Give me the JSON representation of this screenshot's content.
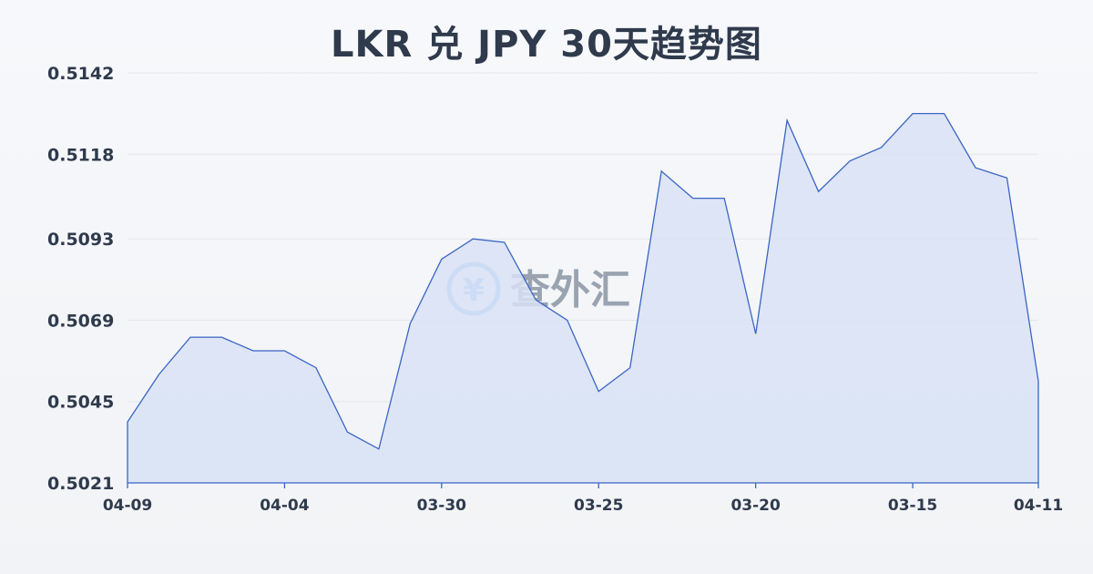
{
  "title": "LKR 兑 JPY 30天趋势图",
  "watermark": {
    "symbol": "¥",
    "text": "查外汇"
  },
  "colors": {
    "line": "#3b65c4",
    "fill": "#d8e2f6",
    "grid": "#e3e6ea",
    "text": "#2f3a4c"
  },
  "chart_data": {
    "type": "area",
    "title": "LKR 兑 JPY 30天趋势图",
    "ylim": [
      0.5021,
      0.5142
    ],
    "yticks": [
      "0.5142",
      "0.5118",
      "0.5093",
      "0.5069",
      "0.5045",
      "0.5021"
    ],
    "xticks": [
      "04-09",
      "04-04",
      "03-30",
      "03-25",
      "03-20",
      "03-15",
      "04-11"
    ],
    "grid": true,
    "values": [
      0.5039,
      0.5053,
      0.5064,
      0.5064,
      0.506,
      0.506,
      0.5055,
      0.5036,
      0.5031,
      0.5068,
      0.5087,
      0.5093,
      0.5092,
      0.5075,
      0.5069,
      0.5048,
      0.5055,
      0.5113,
      0.5105,
      0.5105,
      0.5065,
      0.5128,
      0.5107,
      0.5116,
      0.512,
      0.513,
      0.513,
      0.5114,
      0.5111,
      0.5051
    ]
  }
}
